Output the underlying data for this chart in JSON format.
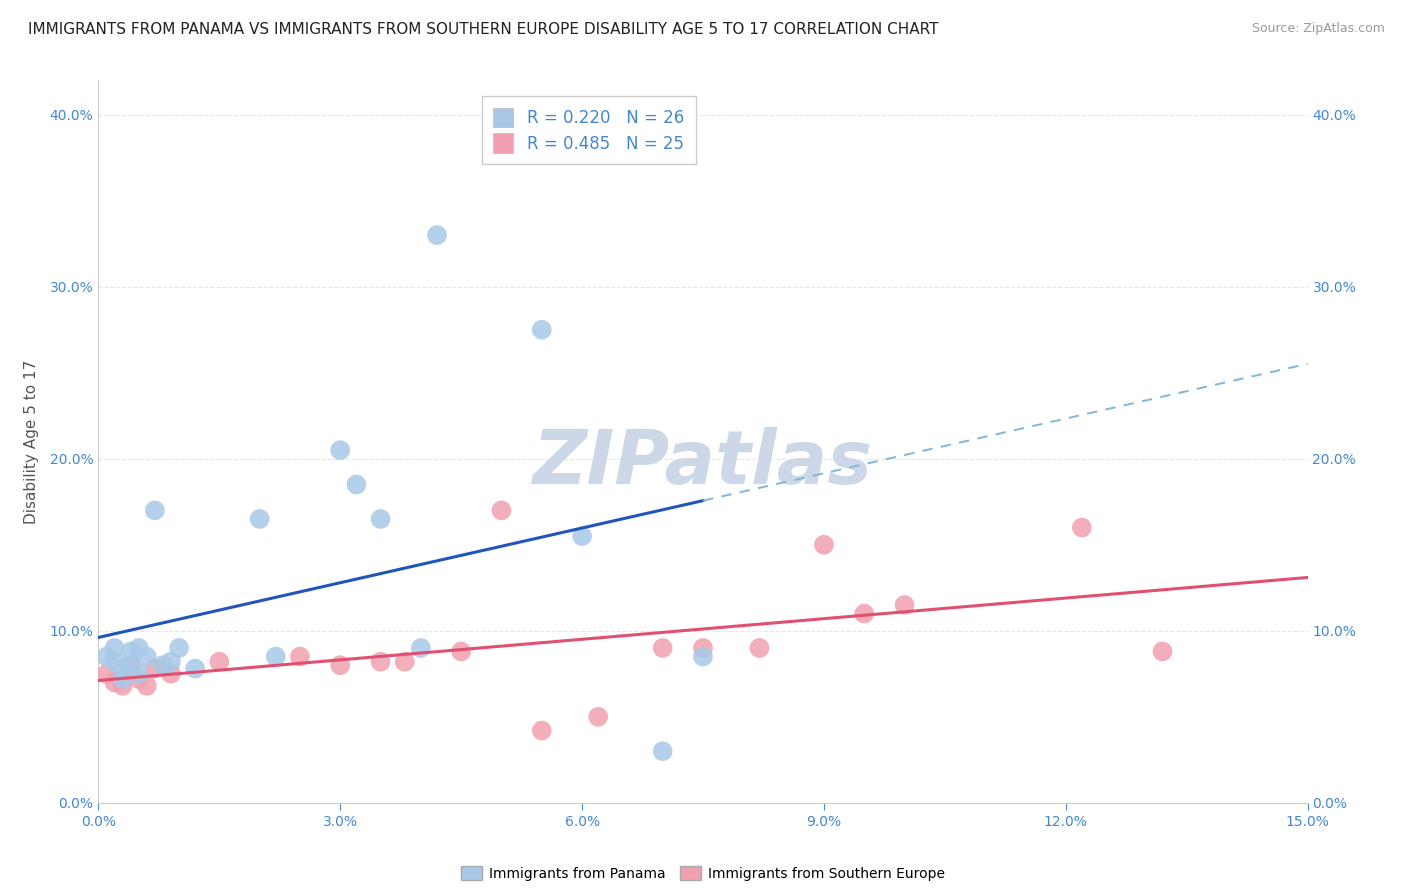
{
  "title": "IMMIGRANTS FROM PANAMA VS IMMIGRANTS FROM SOUTHERN EUROPE DISABILITY AGE 5 TO 17 CORRELATION CHART",
  "source": "Source: ZipAtlas.com",
  "ylabel": "Disability Age 5 to 17",
  "xlim": [
    0.0,
    0.15
  ],
  "ylim": [
    0.0,
    0.42
  ],
  "xticks": [
    0.0,
    0.03,
    0.06,
    0.09,
    0.12,
    0.15
  ],
  "yticks": [
    0.0,
    0.1,
    0.2,
    0.3,
    0.4
  ],
  "panama_R": 0.22,
  "panama_N": 26,
  "s_europe_R": 0.485,
  "s_europe_N": 25,
  "panama_color": "#a8c8e8",
  "s_europe_color": "#f0a0b0",
  "panama_line_color": "#2255bb",
  "s_europe_line_color": "#e05070",
  "panama_dashed_color": "#88b8d8",
  "panama_x": [
    0.001,
    0.002,
    0.002,
    0.003,
    0.003,
    0.004,
    0.004,
    0.005,
    0.005,
    0.006,
    0.007,
    0.008,
    0.009,
    0.01,
    0.012,
    0.02,
    0.022,
    0.03,
    0.032,
    0.035,
    0.04,
    0.042,
    0.055,
    0.06,
    0.07,
    0.075
  ],
  "panama_y": [
    0.085,
    0.09,
    0.082,
    0.078,
    0.072,
    0.088,
    0.08,
    0.09,
    0.075,
    0.085,
    0.17,
    0.08,
    0.082,
    0.09,
    0.078,
    0.165,
    0.085,
    0.205,
    0.185,
    0.165,
    0.09,
    0.33,
    0.275,
    0.155,
    0.03,
    0.085
  ],
  "s_europe_x": [
    0.001,
    0.002,
    0.003,
    0.004,
    0.005,
    0.006,
    0.007,
    0.009,
    0.015,
    0.025,
    0.03,
    0.035,
    0.038,
    0.045,
    0.05,
    0.055,
    0.062,
    0.07,
    0.075,
    0.082,
    0.09,
    0.095,
    0.1,
    0.122,
    0.132
  ],
  "s_europe_y": [
    0.075,
    0.07,
    0.068,
    0.08,
    0.072,
    0.068,
    0.078,
    0.075,
    0.082,
    0.085,
    0.08,
    0.082,
    0.082,
    0.088,
    0.17,
    0.042,
    0.05,
    0.09,
    0.09,
    0.09,
    0.15,
    0.11,
    0.115,
    0.16,
    0.088
  ],
  "panama_trend_solid_end": 0.075,
  "background_color": "#ffffff",
  "grid_color": "#dde8f0",
  "title_fontsize": 11,
  "axis_label_fontsize": 11,
  "tick_fontsize": 10,
  "legend_fontsize": 12,
  "watermark_text": "ZIPatlas",
  "watermark_color": "#ccd8e8",
  "legend_label_panama": "Immigrants from Panama",
  "legend_label_s_europe": "Immigrants from Southern Europe"
}
